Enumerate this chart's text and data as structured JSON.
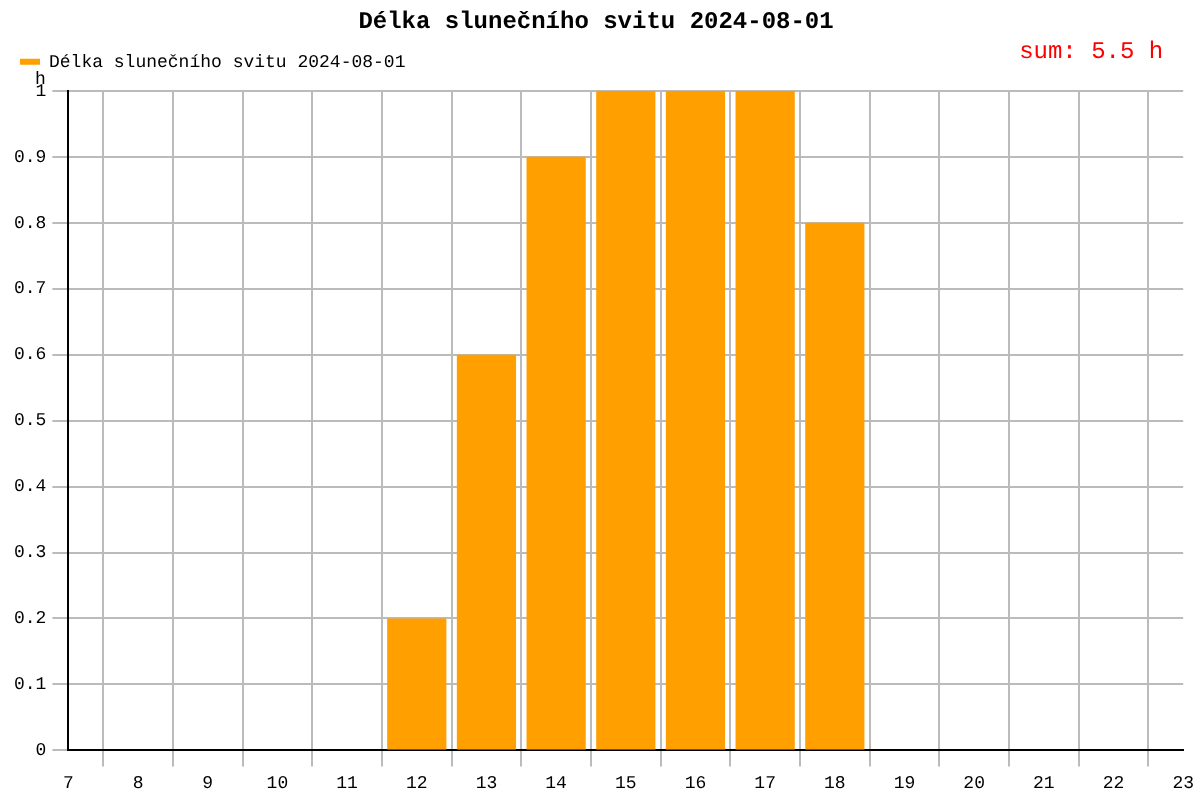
{
  "chart_data": {
    "type": "bar",
    "title": "Délka slunečního svitu 2024-08-01",
    "ylabel": "h",
    "x": [
      12,
      13,
      14,
      15,
      16,
      17,
      18
    ],
    "series": [
      {
        "name": "Délka slunečního svitu 2024-08-01",
        "color": "#ffa000",
        "values": [
          0.2,
          0.6,
          0.9,
          1,
          1,
          1,
          0.8
        ]
      }
    ],
    "xlim": [
      7,
      23
    ],
    "xticks": [
      7,
      8,
      9,
      10,
      11,
      12,
      13,
      14,
      15,
      16,
      17,
      18,
      19,
      20,
      21,
      22,
      23
    ],
    "ylim": [
      0,
      1
    ],
    "yticks": [
      0,
      0.1,
      0.2,
      0.3,
      0.4,
      0.5,
      0.6,
      0.7,
      0.8,
      0.9,
      1
    ],
    "grid": true,
    "legend": "top left",
    "annotations": [
      "sum: 5.5 h"
    ]
  }
}
